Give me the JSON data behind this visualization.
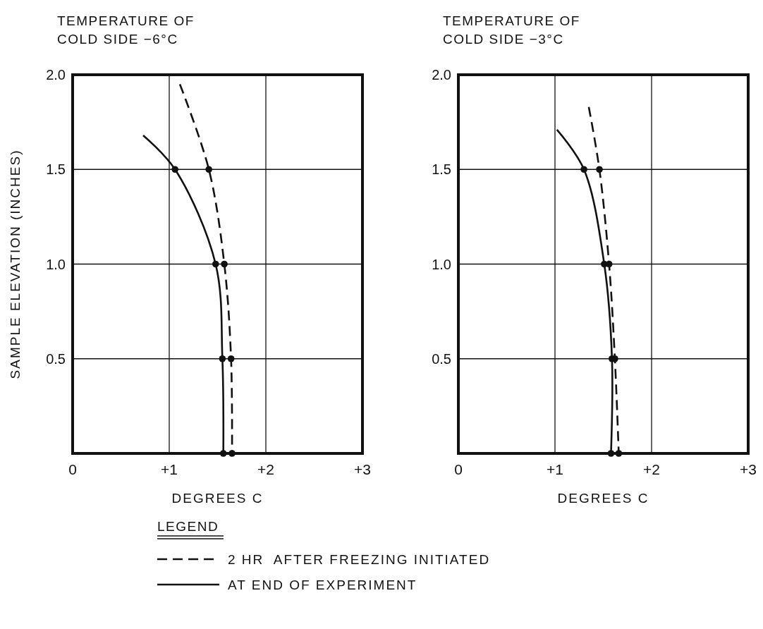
{
  "chart_data": [
    {
      "type": "line",
      "title": "TEMPERATURE OF\nCOLD SIDE −6°C",
      "xlabel": "DEGREES C",
      "ylabel": "SAMPLE ELEVATION (INCHES)",
      "xlim": [
        0,
        3
      ],
      "xticks": [
        0,
        {
          "value": 1,
          "label": "+1"
        },
        {
          "value": 2,
          "label": "+2"
        },
        {
          "value": 3,
          "label": "+3"
        }
      ],
      "ylim": [
        0,
        2
      ],
      "yticks": [
        {
          "value": 0.5,
          "label": "0.5"
        },
        {
          "value": 1,
          "label": "1.0"
        },
        {
          "value": 1.5,
          "label": "1.5"
        },
        {
          "value": 2,
          "label": "2.0"
        }
      ],
      "grid": true,
      "legend": "bottom",
      "legend_title": "LEGEND",
      "series": [
        {
          "type": "line",
          "name": "2 HR  AFTER FREEZING INITIATED",
          "color": "#111111",
          "line_style": "dashed",
          "marker": "none",
          "x": [
            1.11,
            1.41,
            1.57,
            1.64,
            1.65
          ],
          "values": [
            1.95,
            1.5,
            1.0,
            0.5,
            0
          ]
        },
        {
          "type": "line",
          "name": "AT END OF EXPERIMENT",
          "color": "#111111",
          "line_style": "solid",
          "marker": "none",
          "x": [
            0.73,
            1.06,
            1.48,
            1.55,
            1.56
          ],
          "values": [
            1.68,
            1.5,
            1.0,
            0.5,
            0
          ]
        },
        {
          "type": "scatter",
          "color": "#111111",
          "marker": "circle",
          "x": [
            1.41,
            1.57,
            1.64,
            1.65
          ],
          "values": [
            1.5,
            1.0,
            0.5,
            0
          ]
        },
        {
          "type": "scatter",
          "color": "#111111",
          "marker": "circle",
          "x": [
            1.06,
            1.48,
            1.55,
            1.56
          ],
          "values": [
            1.5,
            1.0,
            0.5,
            0
          ]
        }
      ]
    },
    {
      "type": "line",
      "title": "TEMPERATURE OF\nCOLD SIDE −3°C",
      "xlabel": "DEGREES C",
      "xlim": [
        0,
        3
      ],
      "xticks": [
        0,
        {
          "value": 1,
          "label": "+1"
        },
        {
          "value": 2,
          "label": "+2"
        },
        {
          "value": 3,
          "label": "+3"
        }
      ],
      "ylim": [
        0,
        2
      ],
      "yticks": [
        {
          "value": 0.5,
          "label": "0.5"
        },
        {
          "value": 1,
          "label": "1.0"
        },
        {
          "value": 1.5,
          "label": "1.5"
        },
        {
          "value": 2,
          "label": "2.0"
        }
      ],
      "grid": true,
      "series": [
        {
          "type": "line",
          "color": "#111111",
          "line_style": "dashed",
          "marker": "none",
          "x": [
            1.35,
            1.46,
            1.56,
            1.62,
            1.66
          ],
          "values": [
            1.83,
            1.5,
            1.0,
            0.5,
            0
          ]
        },
        {
          "type": "line",
          "color": "#111111",
          "line_style": "solid",
          "marker": "none",
          "x": [
            1.02,
            1.3,
            1.51,
            1.59,
            1.58
          ],
          "values": [
            1.71,
            1.5,
            1.0,
            0.5,
            0
          ]
        },
        {
          "type": "scatter",
          "color": "#111111",
          "marker": "circle",
          "x": [
            1.46,
            1.56,
            1.62,
            1.66
          ],
          "values": [
            1.5,
            1.0,
            0.5,
            0
          ]
        },
        {
          "type": "scatter",
          "color": "#111111",
          "marker": "circle",
          "x": [
            1.3,
            1.51,
            1.59,
            1.58
          ],
          "values": [
            1.5,
            1.0,
            0.5,
            0
          ]
        }
      ]
    }
  ]
}
